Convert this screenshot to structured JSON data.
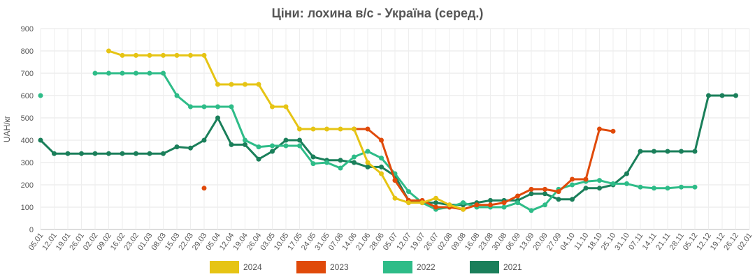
{
  "chart_data": {
    "type": "line",
    "title": "Ціни: лохина в/с - Україна (серед.)",
    "xlabel": "",
    "ylabel": "UAH/кг",
    "ylim": [
      0,
      900
    ],
    "yticks": [
      0,
      100,
      200,
      300,
      400,
      500,
      600,
      700,
      800,
      900
    ],
    "grid": true,
    "legend_position": "bottom",
    "x": [
      "05.01",
      "12.01",
      "19.01",
      "26.01",
      "02.02",
      "09.02",
      "16.02",
      "23.02",
      "01.03",
      "08.03",
      "15.03",
      "22.03",
      "29.03",
      "05.04",
      "12.04",
      "19.04",
      "26.04",
      "03.05",
      "10.05",
      "17.05",
      "24.05",
      "31.05",
      "07.06",
      "14.06",
      "21.06",
      "28.06",
      "05.07",
      "12.07",
      "19.07",
      "26.07",
      "02.08",
      "09.08",
      "16.08",
      "23.08",
      "30.08",
      "06.09",
      "13.09",
      "20.09",
      "27.09",
      "04.10",
      "11.10",
      "18.10",
      "25.10",
      "31.10",
      "07.11",
      "14.11",
      "21.11",
      "28.11",
      "05.12",
      "12.12",
      "19.12",
      "26.12",
      "02.01"
    ],
    "series": [
      {
        "name": "2024",
        "color": "#e6c414",
        "values": [
          null,
          null,
          null,
          null,
          null,
          800,
          780,
          780,
          780,
          780,
          780,
          780,
          780,
          650,
          650,
          650,
          650,
          550,
          550,
          450,
          450,
          450,
          450,
          450,
          300,
          250,
          140,
          120,
          120,
          140,
          110,
          90,
          null,
          null,
          null,
          null,
          null,
          null,
          null,
          null,
          null,
          null,
          null,
          null,
          null,
          null,
          null,
          null,
          null,
          null,
          null,
          null,
          null
        ]
      },
      {
        "name": "2023",
        "color": "#e04a0a",
        "values": [
          null,
          null,
          null,
          null,
          null,
          null,
          null,
          null,
          null,
          null,
          null,
          null,
          185,
          null,
          null,
          null,
          null,
          null,
          null,
          null,
          null,
          null,
          null,
          450,
          450,
          400,
          220,
          130,
          130,
          100,
          100,
          90,
          110,
          110,
          120,
          150,
          180,
          180,
          170,
          225,
          225,
          450,
          440,
          null,
          null,
          null,
          null,
          null,
          null,
          null,
          null,
          null,
          null
        ]
      },
      {
        "name": "2022",
        "color": "#2ebc88",
        "values": [
          600,
          null,
          null,
          null,
          700,
          700,
          700,
          700,
          700,
          700,
          600,
          550,
          550,
          550,
          550,
          400,
          370,
          375,
          375,
          375,
          295,
          300,
          275,
          325,
          350,
          320,
          250,
          170,
          120,
          90,
          100,
          120,
          100,
          100,
          100,
          120,
          85,
          110,
          180,
          200,
          215,
          220,
          205,
          205,
          190,
          185,
          185,
          190,
          190,
          null,
          null,
          null,
          null
        ]
      },
      {
        "name": "2021",
        "color": "#1a7f5a",
        "values": [
          400,
          340,
          340,
          340,
          340,
          340,
          340,
          340,
          340,
          340,
          370,
          365,
          400,
          500,
          380,
          380,
          315,
          350,
          400,
          400,
          325,
          310,
          310,
          300,
          280,
          280,
          240,
          130,
          120,
          120,
          110,
          110,
          120,
          130,
          130,
          130,
          160,
          160,
          135,
          135,
          185,
          185,
          200,
          250,
          350,
          350,
          350,
          350,
          350,
          600,
          600,
          600,
          null
        ]
      }
    ]
  }
}
